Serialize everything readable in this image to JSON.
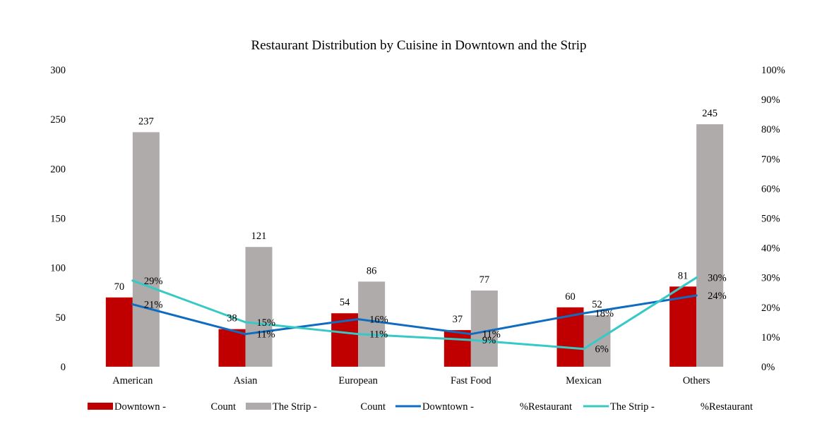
{
  "chart_data": {
    "type": "bar",
    "title": "Restaurant Distribution by Cuisine in Downtown and the Strip",
    "categories": [
      "American",
      "Asian",
      "European",
      "Fast Food",
      "Mexican",
      "Others"
    ],
    "y_left": {
      "ylim": [
        0,
        300
      ],
      "ticks": [
        "0",
        "50",
        "100",
        "150",
        "200",
        "250",
        "300"
      ]
    },
    "y_right": {
      "ylim": [
        0,
        100
      ],
      "ticks": [
        "0%",
        "10%",
        "20%",
        "30%",
        "40%",
        "50%",
        "60%",
        "70%",
        "80%",
        "90%",
        "100%"
      ]
    },
    "grid": false,
    "legend_position": "bottom",
    "series": [
      {
        "name": "Downtown - Count",
        "type": "bar",
        "axis": "left",
        "color": "#C00000",
        "values": [
          70,
          38,
          54,
          37,
          60,
          81
        ],
        "labels": [
          "70",
          "38",
          "54",
          "37",
          "60",
          "81"
        ]
      },
      {
        "name": "The Strip - Count",
        "type": "bar",
        "axis": "left",
        "color": "#AFABAB",
        "values": [
          237,
          121,
          86,
          77,
          52,
          245
        ],
        "labels": [
          "237",
          "121",
          "86",
          "77",
          "52",
          "245"
        ]
      },
      {
        "name": "Downtown - %Restaurant",
        "type": "line",
        "axis": "right",
        "color": "#0F6CBF",
        "values": [
          21,
          11,
          16,
          11,
          18,
          24
        ],
        "labels": [
          "21%",
          "11%",
          "16%",
          "11%",
          "18%",
          "24%"
        ]
      },
      {
        "name": "The Strip - %Restaurant",
        "type": "line",
        "axis": "right",
        "color": "#36C9C6",
        "values": [
          29,
          15,
          11,
          9,
          6,
          30
        ],
        "labels": [
          "29%",
          "15%",
          "11%",
          "9%",
          "6%",
          "30%"
        ]
      }
    ],
    "legend": [
      {
        "left": "Downtown -",
        "right": "Count"
      },
      {
        "left": "The Strip -",
        "right": "Count"
      },
      {
        "left": "Downtown -",
        "right": "%Restaurant"
      },
      {
        "left": "The Strip -",
        "right": "%Restaurant"
      }
    ]
  }
}
